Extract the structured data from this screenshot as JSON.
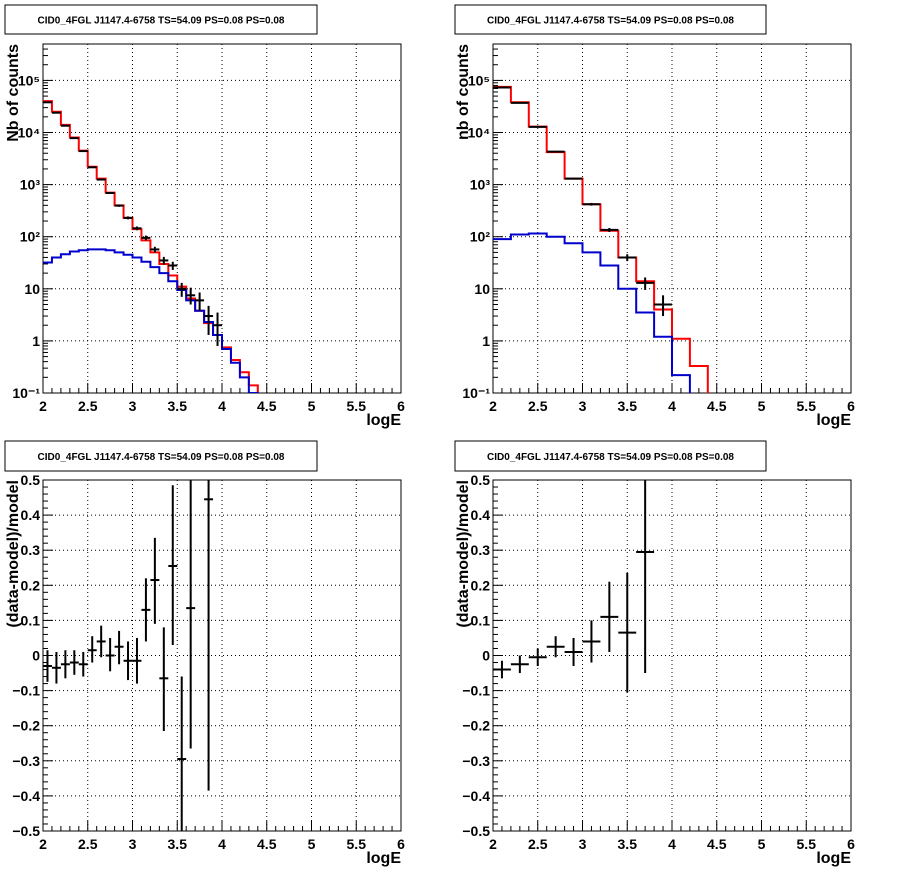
{
  "colors": {
    "data": "#000000",
    "model": "#ff0000",
    "source": "#0000cc",
    "grid": "#000000",
    "frame": "#000000"
  },
  "chart_data": [
    {
      "id": "top-left",
      "type": "line",
      "title": "CID0_4FGL J1147.4-6758 TS=54.09 PS=0.08 PS=0.08",
      "xlabel": "logE",
      "ylabel": "Nb of counts",
      "log_y": true,
      "xlim": [
        2,
        6
      ],
      "ylim": [
        0.1,
        500000
      ],
      "grid": true,
      "x_ticks": [
        {
          "v": 2,
          "t": "2"
        },
        {
          "v": 2.5,
          "t": "2.5"
        },
        {
          "v": 3,
          "t": "3"
        },
        {
          "v": 3.5,
          "t": "3.5"
        },
        {
          "v": 4,
          "t": "4"
        },
        {
          "v": 4.5,
          "t": "4.5"
        },
        {
          "v": 5,
          "t": "5"
        },
        {
          "v": 5.5,
          "t": "5.5"
        },
        {
          "v": 6,
          "t": "6"
        }
      ],
      "y_ticks": [
        {
          "v": 0.1,
          "t": "10⁻¹"
        },
        {
          "v": 1,
          "t": "1"
        },
        {
          "v": 10,
          "t": "10"
        },
        {
          "v": 100,
          "t": "10²"
        },
        {
          "v": 1000,
          "t": "10³"
        },
        {
          "v": 10000,
          "t": "10⁴"
        },
        {
          "v": 100000,
          "t": "10⁵"
        }
      ],
      "bin_edges": [
        2.0,
        2.1,
        2.2,
        2.3,
        2.4,
        2.5,
        2.6,
        2.7,
        2.8,
        2.9,
        3.0,
        3.1,
        3.2,
        3.3,
        3.4,
        3.5,
        3.6,
        3.7,
        3.8,
        3.9,
        4.0,
        4.1,
        4.2,
        4.3,
        4.4,
        4.5,
        4.6,
        4.7,
        4.8,
        4.9,
        5.0,
        5.1,
        5.2,
        5.3,
        5.4,
        5.5,
        5.6,
        5.7,
        5.8,
        5.9,
        6.0
      ],
      "series": [
        {
          "role": "model",
          "values": [
            40000,
            25000,
            14000,
            8000,
            4500,
            2200,
            1300,
            700,
            400,
            230,
            140,
            85,
            50,
            30,
            18,
            11,
            6.5,
            3.8,
            2.2,
            1.3,
            0.75,
            0.43,
            0.25,
            0.14,
            0.08,
            0.05,
            0.05,
            0.05,
            0.05,
            0.05,
            0.05,
            0.05,
            0.05,
            0.05,
            0.05,
            0.05,
            0.05,
            0.05,
            0.05,
            0.05
          ]
        },
        {
          "role": "source",
          "values": [
            32,
            40,
            46,
            52,
            55,
            57,
            57,
            55,
            50,
            45,
            40,
            33,
            26,
            20,
            14,
            9.5,
            6,
            3.8,
            2.3,
            1.3,
            0.7,
            0.38,
            0.2,
            0.1,
            0.06,
            0.05,
            0.05,
            0.05,
            0.05,
            0.05,
            0.05,
            0.05,
            0.05,
            0.05,
            0.05,
            0.05,
            0.05,
            0.05,
            0.05,
            0.05
          ]
        }
      ],
      "points": [
        {
          "x": 2.05,
          "y": 38000,
          "lo": 37600,
          "hi": 38400
        },
        {
          "x": 2.15,
          "y": 24000,
          "lo": 23700,
          "hi": 24300
        },
        {
          "x": 2.25,
          "y": 13500,
          "lo": 13300,
          "hi": 13700
        },
        {
          "x": 2.35,
          "y": 7800,
          "lo": 7650,
          "hi": 7950
        },
        {
          "x": 2.45,
          "y": 4400,
          "lo": 4300,
          "hi": 4500
        },
        {
          "x": 2.55,
          "y": 2150,
          "lo": 2100,
          "hi": 2200
        },
        {
          "x": 2.65,
          "y": 1250,
          "lo": 1215,
          "hi": 1285
        },
        {
          "x": 2.75,
          "y": 690,
          "lo": 665,
          "hi": 715
        },
        {
          "x": 2.85,
          "y": 395,
          "lo": 375,
          "hi": 415
        },
        {
          "x": 2.95,
          "y": 230,
          "lo": 215,
          "hi": 245
        },
        {
          "x": 3.05,
          "y": 145,
          "lo": 133,
          "hi": 157
        },
        {
          "x": 3.15,
          "y": 95,
          "lo": 85,
          "hi": 105
        },
        {
          "x": 3.25,
          "y": 57,
          "lo": 50,
          "hi": 64
        },
        {
          "x": 3.35,
          "y": 35,
          "lo": 29,
          "hi": 41
        },
        {
          "x": 3.45,
          "y": 28,
          "lo": 23,
          "hi": 33
        },
        {
          "x": 3.55,
          "y": 10,
          "lo": 7,
          "hi": 13
        },
        {
          "x": 3.65,
          "y": 7.5,
          "lo": 5,
          "hi": 10.5
        },
        {
          "x": 3.75,
          "y": 6,
          "lo": 3.8,
          "hi": 8.5
        },
        {
          "x": 3.85,
          "y": 3,
          "lo": 1.3,
          "hi": 4.7
        },
        {
          "x": 3.95,
          "y": 2,
          "lo": 0.8,
          "hi": 3.5
        }
      ]
    },
    {
      "id": "top-right",
      "type": "line",
      "title": "CID0_4FGL J1147.4-6758 TS=54.09 PS=0.08 PS=0.08",
      "xlabel": "logE",
      "ylabel": "nb of counts",
      "log_y": true,
      "xlim": [
        2,
        6
      ],
      "ylim": [
        0.1,
        500000
      ],
      "grid": true,
      "x_ticks": [
        {
          "v": 2,
          "t": "2"
        },
        {
          "v": 2.5,
          "t": "2.5"
        },
        {
          "v": 3,
          "t": "3"
        },
        {
          "v": 3.5,
          "t": "3.5"
        },
        {
          "v": 4,
          "t": "4"
        },
        {
          "v": 4.5,
          "t": "4.5"
        },
        {
          "v": 5,
          "t": "5"
        },
        {
          "v": 5.5,
          "t": "5.5"
        },
        {
          "v": 6,
          "t": "6"
        }
      ],
      "y_ticks": [
        {
          "v": 0.1,
          "t": "10⁻¹"
        },
        {
          "v": 1,
          "t": "1"
        },
        {
          "v": 10,
          "t": "10"
        },
        {
          "v": 100,
          "t": "10²"
        },
        {
          "v": 1000,
          "t": "10³"
        },
        {
          "v": 10000,
          "t": "10⁴"
        },
        {
          "v": 100000,
          "t": "10⁵"
        }
      ],
      "bin_edges": [
        2.0,
        2.2,
        2.4,
        2.6,
        2.8,
        3.0,
        3.2,
        3.4,
        3.6,
        3.8,
        4.0,
        4.2,
        4.4,
        4.6,
        4.8,
        5.0,
        5.2,
        5.4,
        5.6,
        5.8,
        6.0
      ],
      "series": [
        {
          "role": "model",
          "values": [
            75000,
            38000,
            13000,
            4200,
            1300,
            420,
            130,
            40,
            14,
            4,
            1.1,
            0.33,
            0.05,
            0.05,
            0.05,
            0.05,
            0.05,
            0.05,
            0.05,
            0.05
          ]
        },
        {
          "role": "source",
          "values": [
            90,
            110,
            115,
            100,
            75,
            50,
            28,
            10,
            3.5,
            1.2,
            0.22,
            0.05,
            0.05,
            0.05,
            0.05,
            0.05,
            0.05,
            0.05,
            0.05,
            0.05
          ]
        }
      ],
      "points": [
        {
          "x": 2.1,
          "y": 73000,
          "lo": 72700,
          "hi": 73300
        },
        {
          "x": 2.3,
          "y": 37000,
          "lo": 36800,
          "hi": 37200
        },
        {
          "x": 2.5,
          "y": 12800,
          "lo": 12650,
          "hi": 12950
        },
        {
          "x": 2.7,
          "y": 4300,
          "lo": 4200,
          "hi": 4400
        },
        {
          "x": 2.9,
          "y": 1300,
          "lo": 1250,
          "hi": 1350
        },
        {
          "x": 3.1,
          "y": 420,
          "lo": 395,
          "hi": 445
        },
        {
          "x": 3.3,
          "y": 135,
          "lo": 123,
          "hi": 147
        },
        {
          "x": 3.5,
          "y": 40,
          "lo": 34,
          "hi": 46
        },
        {
          "x": 3.7,
          "y": 13,
          "lo": 9.5,
          "hi": 16.5
        },
        {
          "x": 3.9,
          "y": 5,
          "lo": 3,
          "hi": 7.5
        }
      ]
    },
    {
      "id": "bottom-left",
      "type": "scatter",
      "title": "CID0_4FGL J1147.4-6758 TS=54.09 PS=0.08 PS=0.08",
      "xlabel": "logE",
      "ylabel": "(data-model)/model",
      "log_y": false,
      "xlim": [
        2,
        6
      ],
      "ylim": [
        -0.5,
        0.5
      ],
      "grid": true,
      "x_ticks": [
        {
          "v": 2,
          "t": "2"
        },
        {
          "v": 2.5,
          "t": "2.5"
        },
        {
          "v": 3,
          "t": "3"
        },
        {
          "v": 3.5,
          "t": "3.5"
        },
        {
          "v": 4,
          "t": "4"
        },
        {
          "v": 4.5,
          "t": "4.5"
        },
        {
          "v": 5,
          "t": "5"
        },
        {
          "v": 5.5,
          "t": "5.5"
        },
        {
          "v": 6,
          "t": "6"
        }
      ],
      "y_ticks": [
        {
          "v": -0.5,
          "t": "−0.5"
        },
        {
          "v": -0.4,
          "t": "−0.4"
        },
        {
          "v": -0.3,
          "t": "−0.3"
        },
        {
          "v": -0.2,
          "t": "−0.2"
        },
        {
          "v": -0.1,
          "t": "−0.1"
        },
        {
          "v": 0,
          "t": "0"
        },
        {
          "v": 0.1,
          "t": "0.1"
        },
        {
          "v": 0.2,
          "t": "0.2"
        },
        {
          "v": 0.3,
          "t": "0.3"
        },
        {
          "v": 0.4,
          "t": "0.4"
        },
        {
          "v": 0.5,
          "t": "0.5"
        }
      ],
      "points": [
        {
          "x": 2.05,
          "y": -0.03,
          "lo": -0.075,
          "hi": 0.015,
          "hw": 0.05
        },
        {
          "x": 2.15,
          "y": -0.035,
          "lo": -0.08,
          "hi": 0.01,
          "hw": 0.05
        },
        {
          "x": 2.25,
          "y": -0.025,
          "lo": -0.065,
          "hi": 0.015,
          "hw": 0.05
        },
        {
          "x": 2.35,
          "y": -0.02,
          "lo": -0.055,
          "hi": 0.015,
          "hw": 0.05
        },
        {
          "x": 2.45,
          "y": -0.025,
          "lo": -0.06,
          "hi": 0.01,
          "hw": 0.05
        },
        {
          "x": 2.55,
          "y": 0.015,
          "lo": -0.02,
          "hi": 0.055,
          "hw": 0.05
        },
        {
          "x": 2.65,
          "y": 0.04,
          "lo": -0.005,
          "hi": 0.085,
          "hw": 0.05
        },
        {
          "x": 2.75,
          "y": 0.0,
          "lo": -0.045,
          "hi": 0.05,
          "hw": 0.05
        },
        {
          "x": 2.85,
          "y": 0.025,
          "lo": -0.025,
          "hi": 0.07,
          "hw": 0.05
        },
        {
          "x": 2.95,
          "y": -0.015,
          "lo": -0.07,
          "hi": 0.04,
          "hw": 0.05
        },
        {
          "x": 3.05,
          "y": -0.015,
          "lo": -0.08,
          "hi": 0.05,
          "hw": 0.05
        },
        {
          "x": 3.15,
          "y": 0.13,
          "lo": 0.04,
          "hi": 0.22,
          "hw": 0.05
        },
        {
          "x": 3.25,
          "y": 0.215,
          "lo": 0.09,
          "hi": 0.335,
          "hw": 0.05
        },
        {
          "x": 3.35,
          "y": -0.065,
          "lo": -0.215,
          "hi": 0.08,
          "hw": 0.05
        },
        {
          "x": 3.45,
          "y": 0.255,
          "lo": 0.03,
          "hi": 0.485,
          "hw": 0.05
        },
        {
          "x": 3.55,
          "y": -0.295,
          "lo": -0.5,
          "hi": -0.06,
          "hw": 0.05
        },
        {
          "x": 3.65,
          "y": 0.135,
          "lo": -0.265,
          "hi": 0.5,
          "hw": 0.05
        },
        {
          "x": 3.85,
          "y": 0.445,
          "lo": -0.385,
          "hi": 0.5,
          "hw": 0.05
        }
      ]
    },
    {
      "id": "bottom-right",
      "type": "scatter",
      "title": "CID0_4FGL J1147.4-6758 TS=54.09 PS=0.08 PS=0.08",
      "xlabel": "logE",
      "ylabel": "(data-model)/model",
      "log_y": false,
      "xlim": [
        2,
        6
      ],
      "ylim": [
        -0.5,
        0.5
      ],
      "grid": true,
      "x_ticks": [
        {
          "v": 2,
          "t": "2"
        },
        {
          "v": 2.5,
          "t": "2.5"
        },
        {
          "v": 3,
          "t": "3"
        },
        {
          "v": 3.5,
          "t": "3.5"
        },
        {
          "v": 4,
          "t": "4"
        },
        {
          "v": 4.5,
          "t": "4.5"
        },
        {
          "v": 5,
          "t": "5"
        },
        {
          "v": 5.5,
          "t": "5.5"
        },
        {
          "v": 6,
          "t": "6"
        }
      ],
      "y_ticks": [
        {
          "v": -0.5,
          "t": "−0.5"
        },
        {
          "v": -0.4,
          "t": "−0.4"
        },
        {
          "v": -0.3,
          "t": "−0.3"
        },
        {
          "v": -0.2,
          "t": "−0.2"
        },
        {
          "v": -0.1,
          "t": "−0.1"
        },
        {
          "v": 0,
          "t": "0"
        },
        {
          "v": 0.1,
          "t": "0.1"
        },
        {
          "v": 0.2,
          "t": "0.2"
        },
        {
          "v": 0.3,
          "t": "0.3"
        },
        {
          "v": 0.4,
          "t": "0.4"
        },
        {
          "v": 0.5,
          "t": "0.5"
        }
      ],
      "points": [
        {
          "x": 2.1,
          "y": -0.04,
          "lo": -0.065,
          "hi": -0.015,
          "hw": 0.1
        },
        {
          "x": 2.3,
          "y": -0.025,
          "lo": -0.05,
          "hi": 0.0,
          "hw": 0.1
        },
        {
          "x": 2.5,
          "y": -0.005,
          "lo": -0.03,
          "hi": 0.02,
          "hw": 0.1
        },
        {
          "x": 2.7,
          "y": 0.025,
          "lo": -0.005,
          "hi": 0.055,
          "hw": 0.1
        },
        {
          "x": 2.9,
          "y": 0.01,
          "lo": -0.03,
          "hi": 0.05,
          "hw": 0.1
        },
        {
          "x": 3.1,
          "y": 0.04,
          "lo": -0.02,
          "hi": 0.1,
          "hw": 0.1
        },
        {
          "x": 3.3,
          "y": 0.11,
          "lo": 0.01,
          "hi": 0.21,
          "hw": 0.1
        },
        {
          "x": 3.5,
          "y": 0.065,
          "lo": -0.105,
          "hi": 0.235,
          "hw": 0.1
        },
        {
          "x": 3.7,
          "y": 0.295,
          "lo": -0.05,
          "hi": 0.5,
          "hw": 0.1
        }
      ]
    }
  ]
}
